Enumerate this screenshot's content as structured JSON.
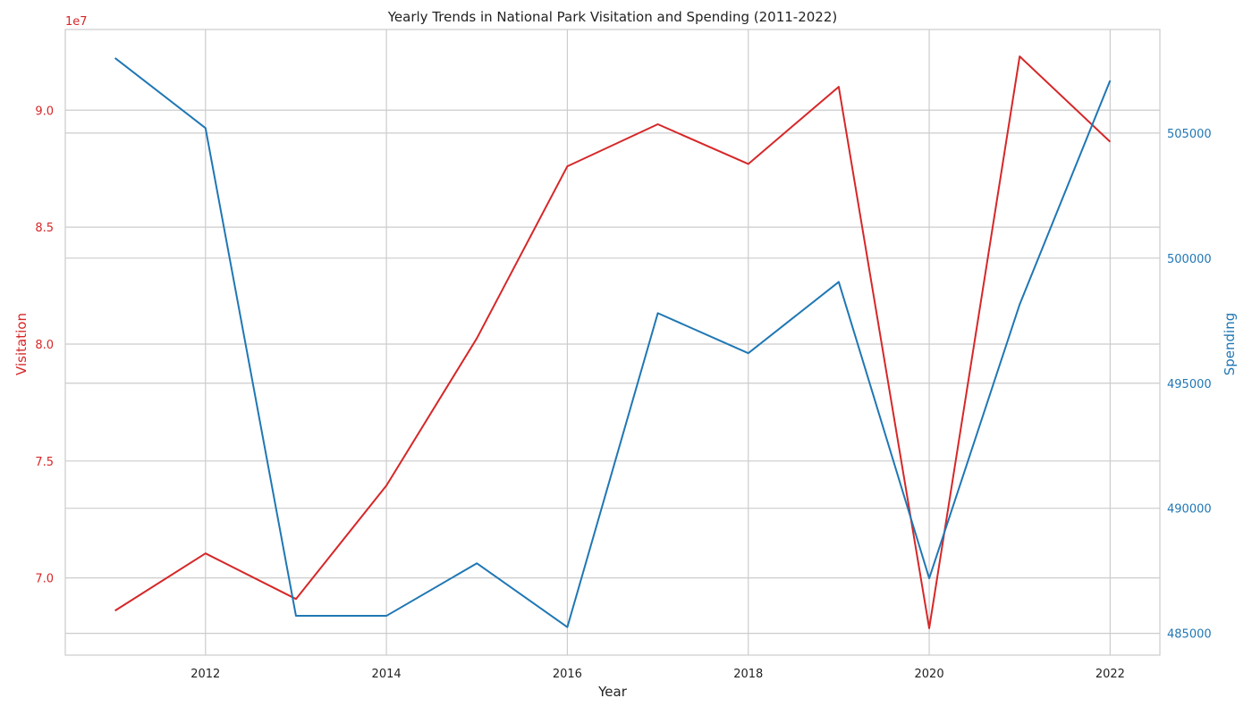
{
  "chart_data": {
    "type": "line",
    "title": "Yearly Trends in National Park Visitation and Spending (2011-2022)",
    "xlabel": "Year",
    "x": [
      2011,
      2012,
      2013,
      2014,
      2015,
      2016,
      2017,
      2018,
      2019,
      2020,
      2021,
      2022
    ],
    "x_ticks": [
      2012,
      2014,
      2016,
      2018,
      2020,
      2022
    ],
    "x_tick_labels": [
      "2012",
      "2014",
      "2016",
      "2018",
      "2020",
      "2022"
    ],
    "xlim": [
      2010.45,
      2022.55
    ],
    "series": [
      {
        "axis": "left",
        "color": "#d62728",
        "values": [
          68600000,
          71050000,
          69100000,
          73950000,
          80250000,
          87600000,
          89400000,
          87700000,
          91000000,
          67850000,
          92300000,
          88650000
        ]
      },
      {
        "axis": "right",
        "color": "#1f77b4",
        "values": [
          508000,
          505200,
          485700,
          485700,
          487800,
          485250,
          497800,
          496200,
          499050,
          487200,
          498150,
          507100
        ]
      }
    ],
    "y_left": {
      "label": "Visitation",
      "color": "#d62728",
      "offset_text": "1e7",
      "ticks": [
        70000000,
        75000000,
        80000000,
        85000000,
        90000000
      ],
      "tick_labels": [
        "7.0",
        "7.5",
        "8.0",
        "8.5",
        "9.0"
      ],
      "lim": [
        66700000,
        93450000
      ]
    },
    "y_right": {
      "label": "Spending",
      "color": "#1f77b4",
      "ticks": [
        485000,
        490000,
        495000,
        500000,
        505000
      ],
      "tick_labels": [
        "485000",
        "490000",
        "495000",
        "500000",
        "505000"
      ],
      "lim": [
        484130,
        509140
      ]
    },
    "grid": true
  }
}
